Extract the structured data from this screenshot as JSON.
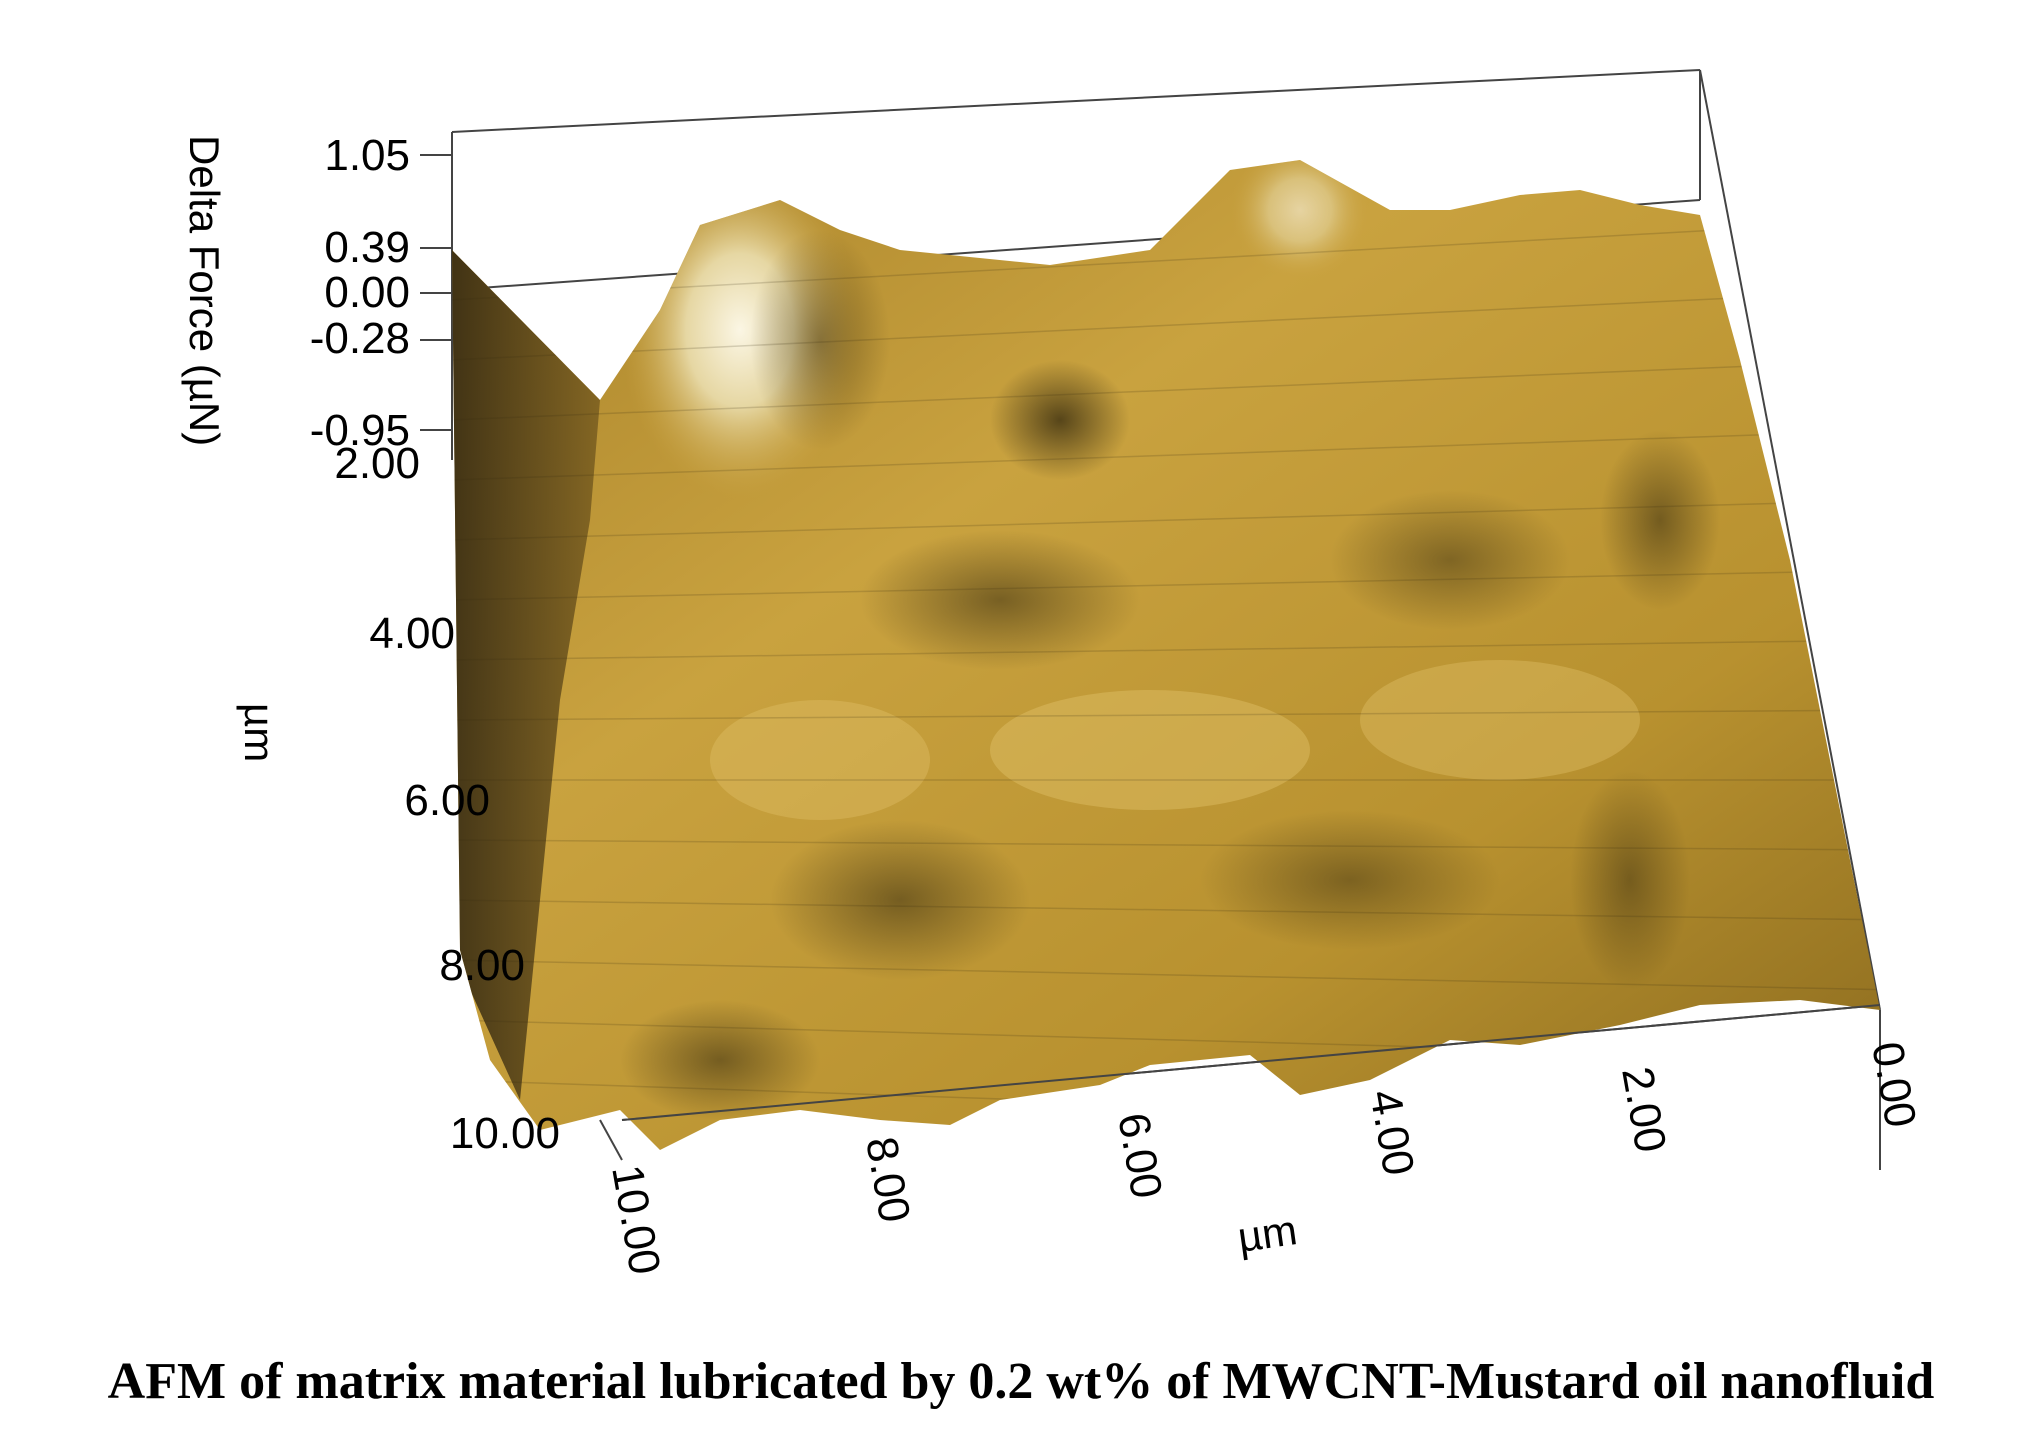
{
  "figure": {
    "z_axis": {
      "label": "Delta Force (µN)",
      "ticks": [
        "1.05",
        "0.39",
        "0.00",
        "-0.28",
        "-0.95"
      ]
    },
    "y_axis": {
      "label": "µm",
      "ticks": [
        "2.00",
        "4.00",
        "6.00",
        "8.00",
        "10.00"
      ]
    },
    "x_axis": {
      "label": "µm",
      "ticks": [
        "10.00",
        "8.00",
        "6.00",
        "4.00",
        "2.00",
        "0.00"
      ]
    },
    "surface_colors": {
      "base": "#c9a23f",
      "highlight": "#fbf6e4",
      "shadow": "#3a2e10"
    }
  },
  "caption": "AFM of matrix material lubricated by 0.2 wt% of MWCNT-Mustard oil nanofluid"
}
